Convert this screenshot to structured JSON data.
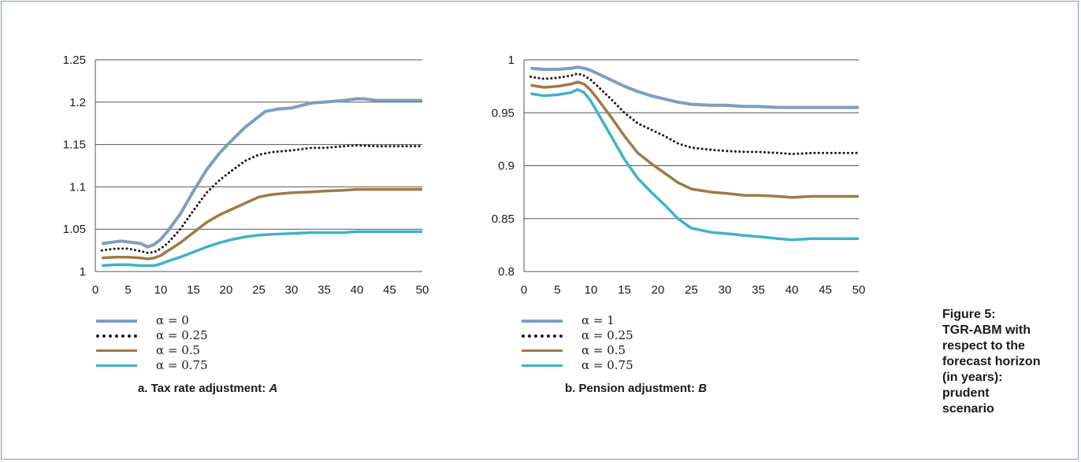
{
  "figure_caption": [
    "Figure 5:",
    "TGR-ABM with",
    "respect to the",
    "forecast horizon",
    "(in years):",
    "prudent",
    "scenario"
  ],
  "colors": {
    "blue": "#7f9dbf",
    "black": "#1a1a1a",
    "brown": "#a07a43",
    "teal": "#3db3c8",
    "grid": "#555555"
  },
  "chart_data": [
    {
      "type": "line",
      "caption_text": "a. Tax rate adjustment: ",
      "caption_var": "A",
      "xlim": [
        0,
        50
      ],
      "ylim": [
        1,
        1.25
      ],
      "xticks": [
        0,
        5,
        10,
        15,
        20,
        25,
        30,
        35,
        40,
        45,
        50
      ],
      "yticks": [
        1,
        1.05,
        1.1,
        1.15,
        1.2,
        1.25
      ],
      "ytick_labels": [
        "1",
        "1.05",
        "1.1",
        "1.15",
        "1.2",
        "1.25"
      ],
      "grid": "horizontal",
      "legend_position": "below",
      "series": [
        {
          "name": "α = 0",
          "style": "solid-blue",
          "x": [
            1,
            3,
            4,
            6,
            7,
            8,
            9,
            10,
            11,
            13,
            15,
            17,
            19,
            21,
            23,
            25,
            26,
            28,
            30,
            33,
            35,
            38,
            40,
            41,
            43,
            45,
            50
          ],
          "y": [
            1.033,
            1.035,
            1.036,
            1.034,
            1.033,
            1.029,
            1.032,
            1.038,
            1.047,
            1.068,
            1.095,
            1.12,
            1.14,
            1.156,
            1.171,
            1.183,
            1.189,
            1.192,
            1.193,
            1.199,
            1.2,
            1.202,
            1.204,
            1.204,
            1.202,
            1.202,
            1.202
          ]
        },
        {
          "name": "α = 0.25",
          "style": "dotted-black",
          "x": [
            1,
            3,
            5,
            7,
            8,
            9,
            10,
            11,
            13,
            15,
            17,
            19,
            21,
            23,
            25,
            27,
            30,
            33,
            35,
            38,
            40,
            43,
            45,
            50
          ],
          "y": [
            1.025,
            1.027,
            1.027,
            1.024,
            1.022,
            1.023,
            1.027,
            1.033,
            1.05,
            1.072,
            1.093,
            1.108,
            1.12,
            1.131,
            1.138,
            1.141,
            1.143,
            1.146,
            1.146,
            1.148,
            1.149,
            1.148,
            1.148,
            1.148
          ]
        },
        {
          "name": "α = 0.5",
          "style": "solid-brown",
          "x": [
            1,
            3,
            5,
            7,
            8,
            9,
            10,
            11,
            13,
            15,
            17,
            19,
            21,
            23,
            25,
            27,
            30,
            33,
            35,
            38,
            40,
            43,
            45,
            50
          ],
          "y": [
            1.016,
            1.017,
            1.017,
            1.016,
            1.015,
            1.016,
            1.019,
            1.024,
            1.034,
            1.046,
            1.058,
            1.067,
            1.074,
            1.081,
            1.088,
            1.091,
            1.093,
            1.094,
            1.095,
            1.096,
            1.097,
            1.097,
            1.097,
            1.097
          ]
        },
        {
          "name": "α = 0.75",
          "style": "solid-teal",
          "x": [
            1,
            3,
            5,
            7,
            8,
            9,
            10,
            11,
            13,
            15,
            17,
            19,
            21,
            23,
            25,
            27,
            30,
            33,
            35,
            38,
            40,
            43,
            45,
            50
          ],
          "y": [
            1.007,
            1.008,
            1.008,
            1.007,
            1.007,
            1.007,
            1.009,
            1.012,
            1.017,
            1.023,
            1.029,
            1.034,
            1.038,
            1.041,
            1.043,
            1.044,
            1.045,
            1.046,
            1.046,
            1.046,
            1.047,
            1.047,
            1.047,
            1.047
          ]
        }
      ]
    },
    {
      "type": "line",
      "caption_text": "b. Pension adjustment: ",
      "caption_var": "B",
      "xlim": [
        0,
        50
      ],
      "ylim": [
        0.8,
        1
      ],
      "xticks": [
        0,
        5,
        10,
        15,
        20,
        25,
        30,
        35,
        40,
        45,
        50
      ],
      "yticks": [
        0.8,
        0.85,
        0.9,
        0.95,
        1
      ],
      "ytick_labels": [
        "0.8",
        "0.85",
        "0.9",
        "0.95",
        "1"
      ],
      "grid": "horizontal",
      "legend_position": "below",
      "series": [
        {
          "name": "α = 1",
          "style": "solid-blue",
          "x": [
            1,
            3,
            5,
            7,
            8,
            9,
            10,
            11,
            13,
            15,
            17,
            19,
            21,
            23,
            25,
            28,
            30,
            33,
            35,
            38,
            40,
            43,
            45,
            50
          ],
          "y": [
            0.992,
            0.991,
            0.991,
            0.992,
            0.993,
            0.992,
            0.99,
            0.987,
            0.981,
            0.975,
            0.97,
            0.966,
            0.963,
            0.96,
            0.958,
            0.957,
            0.957,
            0.956,
            0.956,
            0.955,
            0.955,
            0.955,
            0.955,
            0.955
          ]
        },
        {
          "name": "α = 0.25",
          "style": "dotted-black",
          "x": [
            1,
            3,
            5,
            7,
            8,
            9,
            10,
            11,
            13,
            15,
            17,
            19,
            21,
            23,
            25,
            28,
            30,
            33,
            35,
            38,
            40,
            43,
            45,
            50
          ],
          "y": [
            0.984,
            0.982,
            0.983,
            0.985,
            0.987,
            0.985,
            0.981,
            0.975,
            0.963,
            0.95,
            0.94,
            0.934,
            0.928,
            0.921,
            0.917,
            0.915,
            0.914,
            0.913,
            0.913,
            0.912,
            0.911,
            0.912,
            0.912,
            0.912
          ]
        },
        {
          "name": "α = 0.5",
          "style": "solid-brown",
          "x": [
            1,
            3,
            5,
            7,
            8,
            9,
            10,
            11,
            13,
            15,
            17,
            19,
            21,
            23,
            25,
            28,
            30,
            33,
            35,
            38,
            40,
            43,
            45,
            50
          ],
          "y": [
            0.976,
            0.974,
            0.975,
            0.977,
            0.979,
            0.977,
            0.971,
            0.963,
            0.946,
            0.928,
            0.912,
            0.902,
            0.893,
            0.884,
            0.878,
            0.875,
            0.874,
            0.872,
            0.872,
            0.871,
            0.87,
            0.871,
            0.871,
            0.871
          ]
        },
        {
          "name": "α = 0.75",
          "style": "solid-teal",
          "x": [
            1,
            3,
            5,
            7,
            8,
            9,
            10,
            11,
            13,
            15,
            17,
            19,
            21,
            23,
            25,
            28,
            30,
            33,
            35,
            38,
            40,
            43,
            45,
            50
          ],
          "y": [
            0.968,
            0.966,
            0.967,
            0.969,
            0.972,
            0.969,
            0.961,
            0.95,
            0.928,
            0.906,
            0.888,
            0.875,
            0.863,
            0.85,
            0.841,
            0.837,
            0.836,
            0.834,
            0.833,
            0.831,
            0.83,
            0.831,
            0.831,
            0.831
          ]
        }
      ]
    }
  ]
}
